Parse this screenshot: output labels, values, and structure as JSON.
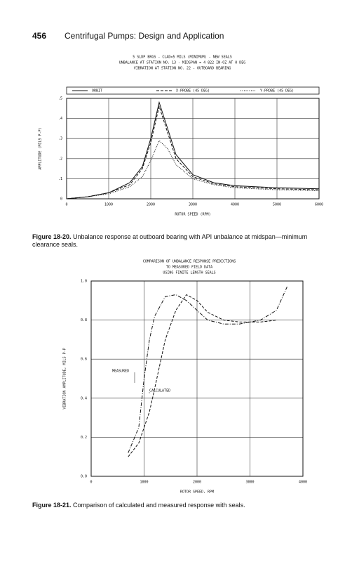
{
  "header": {
    "page_number": "456",
    "title": "Centrifugal Pumps: Design and Application"
  },
  "chart_data": [
    {
      "type": "line",
      "title": [
        "5 SLDP BRGS - CLAD=5 MILS (MINIMUM) - NEW SEALS",
        "UNBALANCE AT STATION NO.  13 - MIDSPAN        =     4 822 IN-OZ AT 0 DEG",
        "VIBRATION AT STATION NO.   22 - OUTBOARD BEARING"
      ],
      "x": [
        0,
        500,
        1000,
        1500,
        1800,
        2000,
        2200,
        2400,
        2600,
        3000,
        3500,
        4000,
        5000,
        6000
      ],
      "series": [
        {
          "name": "ORBIT",
          "color": "#111111",
          "style": "solid",
          "values": [
            0,
            0.01,
            0.03,
            0.08,
            0.16,
            0.3,
            0.48,
            0.35,
            0.22,
            0.12,
            0.08,
            0.065,
            0.055,
            0.05
          ]
        },
        {
          "name": "X-PROBE (45 DEG)",
          "color": "#111111",
          "style": "dashed",
          "values": [
            0,
            0.01,
            0.03,
            0.07,
            0.15,
            0.28,
            0.46,
            0.33,
            0.2,
            0.11,
            0.075,
            0.06,
            0.05,
            0.045
          ]
        },
        {
          "name": "Y-PROBE (45 DEG)",
          "color": "#111111",
          "style": "dotted",
          "values": [
            0,
            0.01,
            0.025,
            0.06,
            0.11,
            0.19,
            0.29,
            0.25,
            0.17,
            0.1,
            0.07,
            0.055,
            0.045,
            0.04
          ]
        }
      ],
      "xlim": [
        0,
        6000
      ],
      "xticks": [
        0,
        1000,
        2000,
        3000,
        4000,
        5000,
        6000
      ],
      "ylim": [
        0,
        0.5
      ],
      "yticks": [
        0,
        {
          "value": 0.1,
          "label": ".1"
        },
        {
          "value": 0.2,
          "label": ".2"
        },
        {
          "value": 0.3,
          "label": ".3"
        },
        {
          "value": 0.4,
          "label": ".4"
        },
        {
          "value": 0.5,
          "label": ".5"
        }
      ],
      "xlabel": "ROTOR SPEED (RPM)",
      "ylabel": "AMPLITUDE (MILS P-P)",
      "grid": true,
      "legend": "top",
      "caption": {
        "label": "Figure 18-20.",
        "text": "Unbalance response at outboard bearing with API unbalance at midspan—minimum clearance seals."
      }
    },
    {
      "type": "line",
      "title": [
        "COMPARISON OF UNBALANCE RESPONSE PREDICTIONS",
        "TO MEASURED FIELD DATA",
        "USING FINITE LENGTH SEALS"
      ],
      "x": [
        700,
        900,
        1000,
        1100,
        1200,
        1400,
        1600,
        1800,
        2000,
        2200,
        2500,
        2800,
        3200,
        3500,
        3700
      ],
      "series": [
        {
          "name": "MEASURED",
          "color": "#111111",
          "style": "dashdot",
          "values": [
            0.12,
            0.25,
            0.5,
            0.7,
            0.82,
            0.92,
            0.93,
            0.9,
            0.85,
            0.8,
            0.78,
            0.78,
            0.8,
            0.85,
            0.97
          ]
        },
        {
          "name": "CALCULATED",
          "color": "#111111",
          "style": "dashed",
          "values": [
            0.1,
            0.17,
            0.25,
            0.33,
            0.45,
            0.7,
            0.85,
            0.93,
            0.9,
            0.84,
            0.8,
            0.79,
            0.79,
            0.8,
            null
          ]
        }
      ],
      "xlim": [
        0,
        4000
      ],
      "xticks": [
        0,
        1000,
        2000,
        3000,
        4000
      ],
      "ylim": [
        0,
        1
      ],
      "yticks": [
        {
          "value": 0,
          "label": "0.0"
        },
        0.2,
        0.4,
        0.6,
        0.8,
        {
          "value": 1,
          "label": "1.0"
        }
      ],
      "xlabel": "ROTOR SPEED, RPM",
      "ylabel": "VIBRATION AMPLITUDE, MILS P-P",
      "grid": true,
      "legend": "annotations",
      "caption": {
        "label": "Figure 18-21.",
        "text": "Comparison of calculated and measured response with seals."
      }
    }
  ]
}
